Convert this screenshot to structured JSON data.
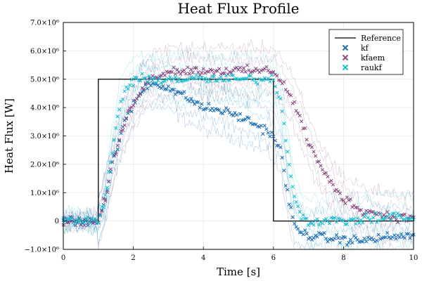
{
  "chart_data": {
    "type": "line",
    "title": "Heat Flux Profile",
    "xlabel": "Time [s]",
    "ylabel": "Heat Flux [W]",
    "xlim": [
      0,
      10
    ],
    "ylim": [
      -1000000,
      7000000
    ],
    "x_ticks": [
      0,
      2,
      4,
      6,
      8,
      10
    ],
    "x_tick_labels": [
      "0",
      "2",
      "4",
      "6",
      "8",
      "10"
    ],
    "y_ticks": [
      -1000000,
      0,
      1000000,
      2000000,
      3000000,
      4000000,
      5000000,
      6000000,
      7000000
    ],
    "y_tick_labels": [
      "−1.0×10⁶",
      "0",
      "1.0×10⁶",
      "2.0×10⁶",
      "3.0×10⁶",
      "4.0×10⁶",
      "5.0×10⁶",
      "6.0×10⁶",
      "7.0×10⁶"
    ],
    "grid": true,
    "legend_position": "top-right",
    "series": [
      {
        "name": "Reference",
        "style": "line",
        "color": "#000000",
        "x": [
          0,
          1,
          1,
          6,
          6,
          10
        ],
        "y": [
          0,
          0,
          5000000,
          5000000,
          0,
          0
        ]
      },
      {
        "name": "kf",
        "style": "markers",
        "marker": "x",
        "color": "#1f6fb4",
        "x": [
          0,
          0.5,
          1.0,
          1.2,
          1.4,
          1.6,
          1.8,
          2.0,
          2.2,
          2.4,
          2.6,
          2.8,
          3.0,
          3.3,
          3.6,
          4.0,
          4.5,
          5.0,
          5.5,
          5.8,
          6.0,
          6.2,
          6.4,
          6.6,
          6.8,
          7.0,
          7.5,
          8.0,
          8.5,
          9.0,
          9.5,
          10.0
        ],
        "y": [
          0,
          0,
          0,
          800000,
          2000000,
          2900000,
          3600000,
          4100000,
          4500000,
          4800000,
          4850000,
          4800000,
          4700000,
          4500000,
          4300000,
          4000000,
          3900000,
          3700000,
          3400000,
          3200000,
          3000000,
          2500000,
          1000000,
          -200000,
          -400000,
          -500000,
          -600000,
          -650000,
          -700000,
          -600000,
          -550000,
          -500000
        ]
      },
      {
        "name": "kfaem",
        "style": "markers",
        "marker": "x",
        "color": "#8e4a82",
        "x": [
          0,
          0.5,
          1.0,
          1.2,
          1.4,
          1.6,
          1.8,
          2.0,
          2.2,
          2.4,
          2.6,
          2.8,
          3.0,
          3.5,
          4.0,
          4.5,
          5.0,
          5.5,
          6.0,
          6.2,
          6.4,
          6.6,
          6.8,
          7.0,
          7.3,
          7.6,
          8.0,
          8.5,
          9.0,
          9.5,
          10.0
        ],
        "y": [
          0,
          0,
          0,
          800000,
          2000000,
          2900000,
          3600000,
          4200000,
          4600000,
          4900000,
          5100000,
          5200000,
          5300000,
          5300000,
          5300000,
          5300000,
          5300000,
          5300000,
          5300000,
          5000000,
          4600000,
          4100000,
          3500000,
          2800000,
          2000000,
          1400000,
          800000,
          400000,
          250000,
          150000,
          100000
        ]
      },
      {
        "name": "raukf",
        "style": "markers",
        "marker": "x",
        "color": "#17becf",
        "x": [
          0,
          0.5,
          1.0,
          1.2,
          1.4,
          1.6,
          1.8,
          2.0,
          2.2,
          2.4,
          2.6,
          2.8,
          3.0,
          3.5,
          4.0,
          4.5,
          5.0,
          5.5,
          6.0,
          6.2,
          6.4,
          6.6,
          6.8,
          7.0,
          7.5,
          8.0,
          8.5,
          9.0,
          9.5,
          10.0
        ],
        "y": [
          0,
          0,
          0,
          800000,
          2500000,
          4000000,
          4700000,
          4900000,
          5000000,
          5000000,
          5000000,
          5000000,
          5000000,
          5000000,
          5000000,
          5000000,
          5000000,
          5000000,
          5000000,
          4300000,
          2500000,
          800000,
          200000,
          0,
          0,
          0,
          50000,
          100000,
          200000,
          0
        ]
      }
    ]
  }
}
